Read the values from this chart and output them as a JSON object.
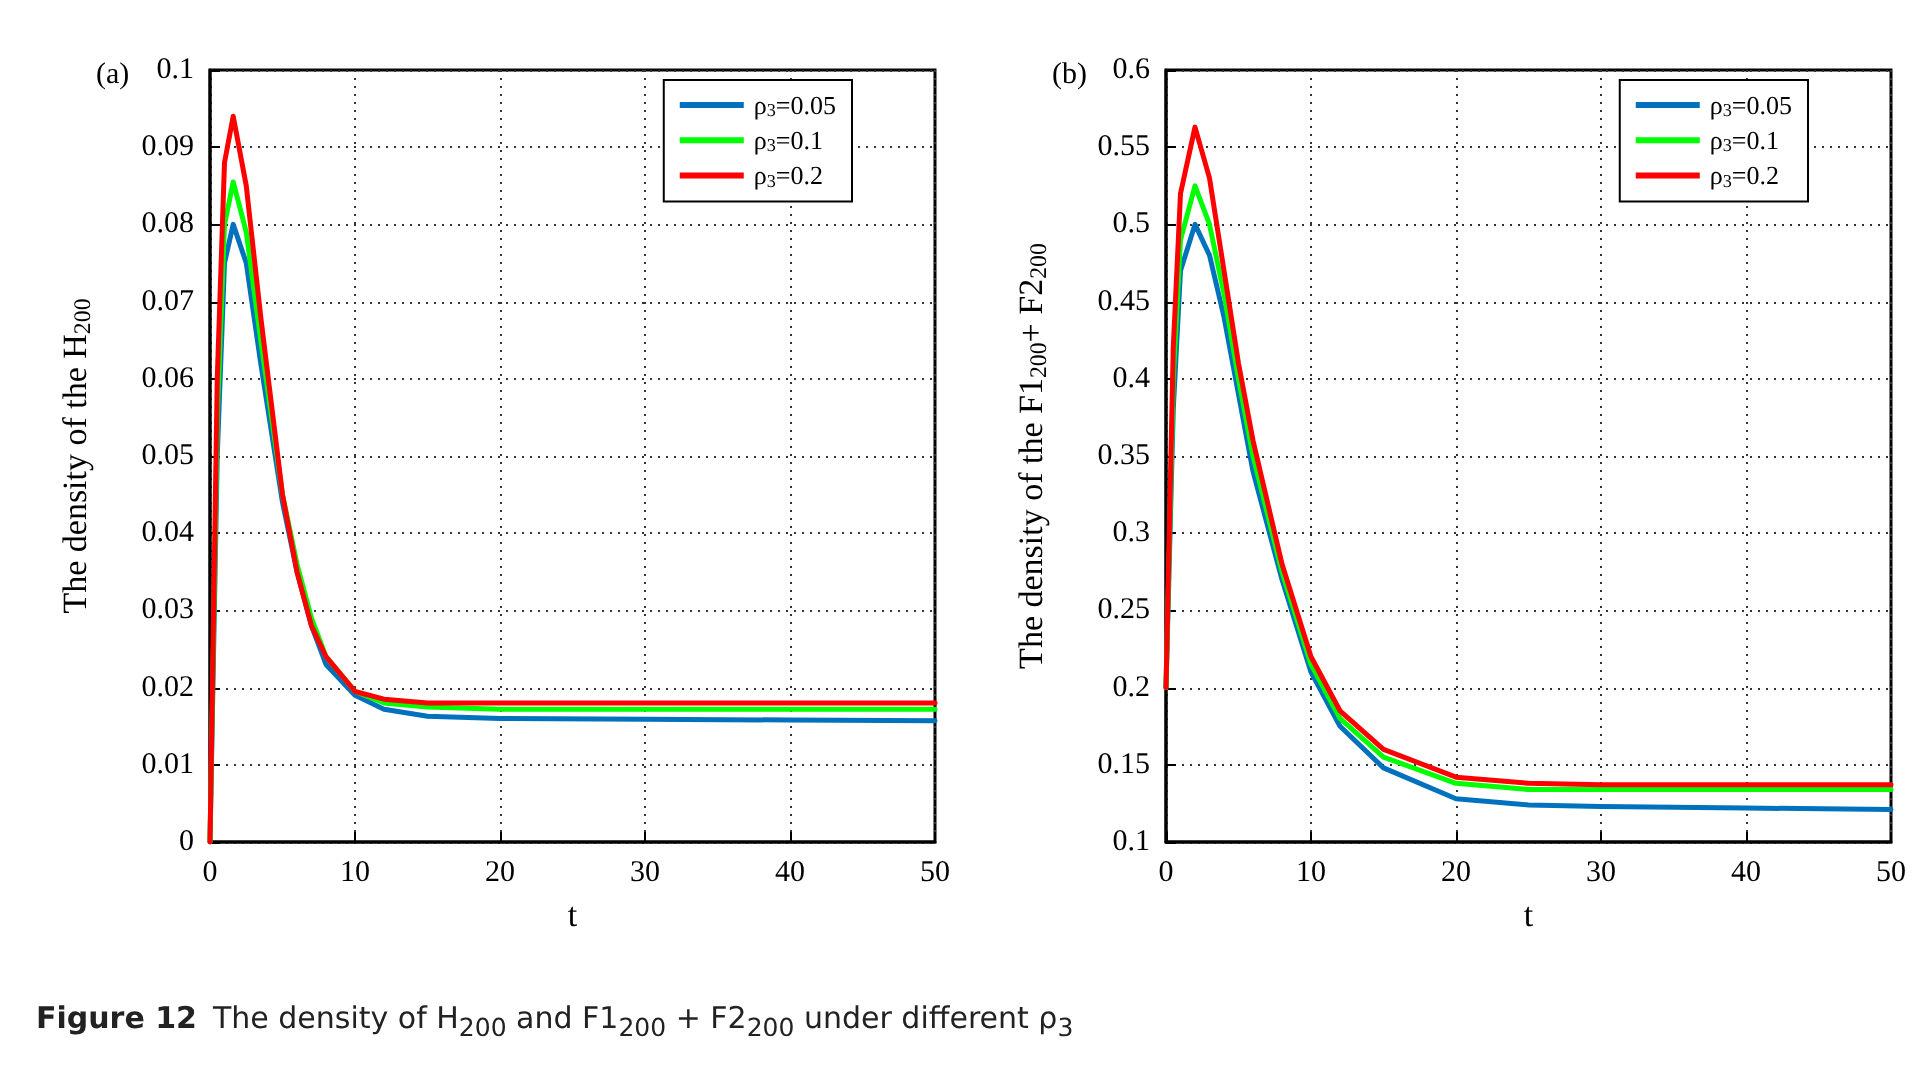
{
  "chart_data": [
    {
      "type": "line",
      "xlabel": "t",
      "ylabel": "The density of the H$_{200}$",
      "annotations": [
        "(a)",
        "Figure 12",
        "The density of H$_{200}$ and F1$_{200}$ + F2$_{200}$ under different ρ$_{3}$"
      ],
      "x": [
        0,
        0.5,
        1,
        1.6,
        2.5,
        3.5,
        5,
        6,
        7,
        8,
        10,
        12,
        15,
        20,
        30,
        40,
        50
      ],
      "series": [
        {
          "name": "ρ$_{3}$=0.05",
          "color": "#0072bd",
          "values": [
            0,
            0.05,
            0.075,
            0.08,
            0.075,
            0.062,
            0.044,
            0.035,
            0.028,
            0.023,
            0.019,
            0.0172,
            0.0163,
            0.016,
            0.0159,
            0.0158,
            0.0157
          ]
        },
        {
          "name": "ρ$_{3}$=0.1",
          "color": "#00ff00",
          "values": [
            0,
            0.055,
            0.08,
            0.0855,
            0.079,
            0.065,
            0.045,
            0.036,
            0.029,
            0.024,
            0.0195,
            0.018,
            0.0175,
            0.0172,
            0.0172,
            0.0172,
            0.0172
          ]
        },
        {
          "name": "ρ$_{3}$=0.2",
          "color": "#ff0000",
          "values": [
            0,
            0.06,
            0.088,
            0.094,
            0.085,
            0.068,
            0.045,
            0.035,
            0.028,
            0.024,
            0.0195,
            0.0185,
            0.018,
            0.018,
            0.018,
            0.018,
            0.018
          ]
        }
      ],
      "xlim": [
        0,
        50
      ],
      "xticks": [
        0,
        10,
        20,
        30,
        40,
        50
      ],
      "ylim": [
        0,
        0.1
      ],
      "yticks": [
        0,
        0.01,
        0.02,
        0.03,
        0.04,
        0.05,
        0.06,
        0.07,
        0.08,
        0.09,
        0.1
      ],
      "grid": true,
      "legend": "top right",
      "marker": "none",
      "line_style": "solid"
    },
    {
      "type": "line",
      "xlabel": "t",
      "ylabel": "The density of the F1$_{200}$+ F2$_{200}$",
      "annotations": [
        "(b)"
      ],
      "x": [
        0,
        0.5,
        1,
        2,
        3,
        4,
        5,
        6,
        8,
        10,
        12,
        15,
        20,
        25,
        30,
        40,
        50
      ],
      "series": [
        {
          "name": "ρ$_{3}$=0.05",
          "color": "#0072bd",
          "values": [
            0.2,
            0.38,
            0.47,
            0.5,
            0.48,
            0.44,
            0.39,
            0.34,
            0.27,
            0.21,
            0.175,
            0.148,
            0.128,
            0.124,
            0.123,
            0.122,
            0.121
          ]
        },
        {
          "name": "ρ$_{3}$=0.1",
          "color": "#00ff00",
          "values": [
            0.2,
            0.4,
            0.49,
            0.525,
            0.5,
            0.455,
            0.4,
            0.35,
            0.275,
            0.215,
            0.18,
            0.155,
            0.138,
            0.134,
            0.134,
            0.134,
            0.134
          ]
        },
        {
          "name": "ρ$_{3}$=0.2",
          "color": "#ff0000",
          "values": [
            0.2,
            0.42,
            0.52,
            0.563,
            0.53,
            0.47,
            0.41,
            0.36,
            0.28,
            0.22,
            0.185,
            0.16,
            0.142,
            0.138,
            0.137,
            0.137,
            0.137
          ]
        }
      ],
      "xlim": [
        0,
        50
      ],
      "xticks": [
        0,
        10,
        20,
        30,
        40,
        50
      ],
      "ylim": [
        0.1,
        0.6
      ],
      "yticks": [
        0.1,
        0.15,
        0.2,
        0.25,
        0.3,
        0.35,
        0.4,
        0.45,
        0.5,
        0.55,
        0.6
      ],
      "grid": true,
      "legend": "top right",
      "marker": "none",
      "line_style": "solid"
    }
  ]
}
